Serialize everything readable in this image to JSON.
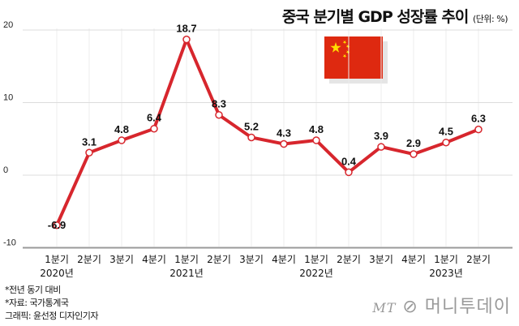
{
  "chart_data": {
    "type": "line",
    "title": "중국 분기별 GDP 성장률 추이",
    "unit": "(단위: %)",
    "categories": [
      "1분기",
      "2분기",
      "3분기",
      "4분기",
      "1분기",
      "2분기",
      "3분기",
      "4분기",
      "1분기",
      "2분기",
      "3분기",
      "4분기",
      "1분기",
      "2분기"
    ],
    "years": [
      {
        "label": "2020년",
        "index": 0
      },
      {
        "label": "2021년",
        "index": 4
      },
      {
        "label": "2022년",
        "index": 8
      },
      {
        "label": "2023년",
        "index": 12
      }
    ],
    "values": [
      -6.9,
      3.1,
      4.8,
      6.4,
      18.7,
      8.3,
      5.2,
      4.3,
      4.8,
      0.4,
      3.9,
      2.9,
      4.5,
      6.3
    ],
    "value_labels": [
      "-6.9",
      "3.1",
      "4.8",
      "6.4",
      "18.7",
      "8.3",
      "5.2",
      "4.3",
      "4.8",
      "0.4",
      "3.9",
      "2.9",
      "4.5",
      "6.3"
    ],
    "yticks": [
      20,
      10,
      0,
      -10
    ],
    "ylim": [
      -10,
      20
    ],
    "grid": true,
    "line_color": "#d7262d"
  },
  "notes": [
    "*전년 동기 대비",
    "*자료: 국가통계국",
    "그래픽: 윤선정 디자인기자"
  ],
  "logo": {
    "mark": "MT",
    "name": "머니투데이"
  }
}
